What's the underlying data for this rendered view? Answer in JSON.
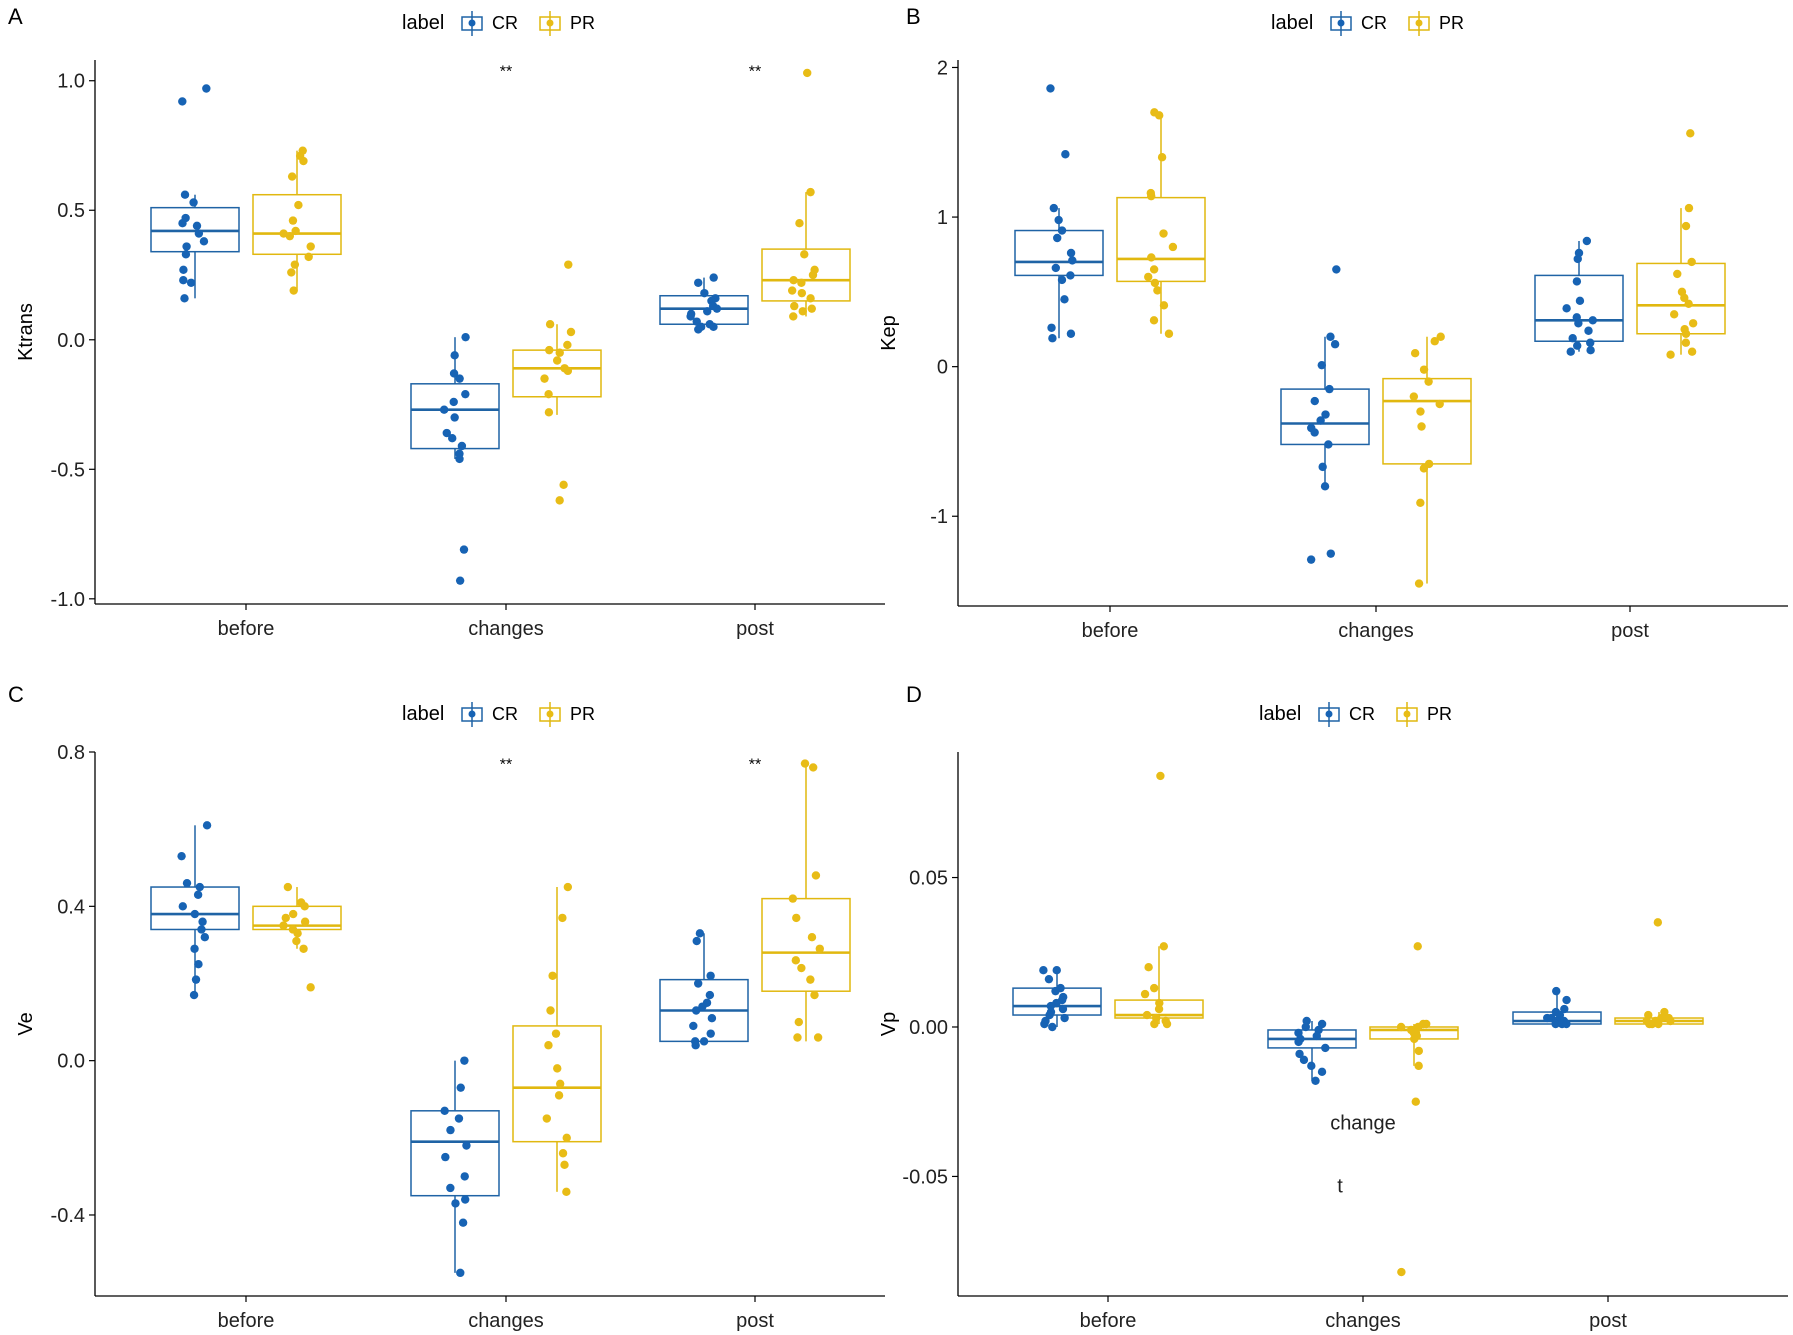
{
  "figure": {
    "legend_title": "label",
    "groups": [
      "CR",
      "PR"
    ],
    "colors": {
      "CR": "#1F63A5",
      "PR": "#E1B80F",
      "CR_point": "#1763B4",
      "PR_point": "#E8BC16",
      "axis": "#000000"
    }
  },
  "chart_data": [
    {
      "panel": "A",
      "type": "box",
      "title": "",
      "xlabel": "",
      "ylabel": "Ktrans",
      "ylim": [
        -1.02,
        1.08
      ],
      "y_ticks": [
        1.0,
        0.5,
        0.0,
        -0.5,
        -1.0
      ],
      "y_tick_labels": [
        "1.0",
        "0.5",
        "0.0",
        "-0.5",
        "-1.0"
      ],
      "categories": [
        "before",
        "changes",
        "post"
      ],
      "significance": [
        {
          "category": "changes",
          "label": "**",
          "y": 1.04
        },
        {
          "category": "post",
          "label": "**",
          "y": 1.04
        }
      ],
      "annotations": [],
      "series": [
        {
          "name": "CR",
          "boxes": [
            {
              "whisker_low": 0.16,
              "q1": 0.34,
              "median": 0.42,
              "q3": 0.51,
              "whisker_high": 0.56
            },
            {
              "whisker_low": -0.46,
              "q1": -0.42,
              "median": -0.27,
              "q3": -0.17,
              "whisker_high": 0.01
            },
            {
              "whisker_low": 0.04,
              "q1": 0.06,
              "median": 0.12,
              "q3": 0.17,
              "whisker_high": 0.24
            }
          ],
          "points": [
            [
              0.97,
              0.92,
              0.56,
              0.53,
              0.47,
              0.45,
              0.44,
              0.41,
              0.38,
              0.36,
              0.33,
              0.27,
              0.23,
              0.22,
              0.16
            ],
            [
              0.01,
              -0.06,
              -0.13,
              -0.15,
              -0.21,
              -0.24,
              -0.27,
              -0.3,
              -0.36,
              -0.38,
              -0.41,
              -0.44,
              -0.46,
              -0.81,
              -0.93
            ],
            [
              0.24,
              0.22,
              0.18,
              0.16,
              0.15,
              0.13,
              0.12,
              0.11,
              0.1,
              0.09,
              0.07,
              0.06,
              0.05,
              0.05,
              0.04
            ]
          ]
        },
        {
          "name": "PR",
          "boxes": [
            {
              "whisker_low": 0.19,
              "q1": 0.33,
              "median": 0.41,
              "q3": 0.56,
              "whisker_high": 0.73
            },
            {
              "whisker_low": -0.29,
              "q1": -0.22,
              "median": -0.11,
              "q3": -0.04,
              "whisker_high": 0.06
            },
            {
              "whisker_low": 0.09,
              "q1": 0.15,
              "median": 0.23,
              "q3": 0.35,
              "whisker_high": 0.57
            }
          ],
          "points": [
            [
              0.73,
              0.71,
              0.69,
              0.63,
              0.52,
              0.46,
              0.42,
              0.41,
              0.4,
              0.36,
              0.32,
              0.29,
              0.26,
              0.19
            ],
            [
              0.29,
              0.06,
              0.03,
              -0.02,
              -0.04,
              -0.05,
              -0.08,
              -0.11,
              -0.12,
              -0.15,
              -0.21,
              -0.28,
              -0.56,
              -0.62
            ],
            [
              1.03,
              0.57,
              0.45,
              0.33,
              0.27,
              0.25,
              0.23,
              0.22,
              0.19,
              0.18,
              0.16,
              0.13,
              0.12,
              0.11,
              0.09
            ]
          ]
        }
      ]
    },
    {
      "panel": "B",
      "type": "box",
      "title": "",
      "xlabel": "",
      "ylabel": "Kep",
      "ylim": [
        -1.6,
        2.05
      ],
      "y_ticks": [
        2,
        1,
        0,
        -1
      ],
      "y_tick_labels": [
        "2",
        "1",
        "0",
        "-1"
      ],
      "categories": [
        "before",
        "changes",
        "post"
      ],
      "significance": [],
      "annotations": [],
      "series": [
        {
          "name": "CR",
          "boxes": [
            {
              "whisker_low": 0.19,
              "q1": 0.61,
              "median": 0.7,
              "q3": 0.91,
              "whisker_high": 1.06
            },
            {
              "whisker_low": -0.8,
              "q1": -0.52,
              "median": -0.38,
              "q3": -0.15,
              "whisker_high": 0.2
            },
            {
              "whisker_low": 0.1,
              "q1": 0.17,
              "median": 0.31,
              "q3": 0.61,
              "whisker_high": 0.84
            }
          ],
          "points": [
            [
              1.86,
              1.42,
              1.06,
              0.98,
              0.91,
              0.86,
              0.76,
              0.71,
              0.66,
              0.61,
              0.58,
              0.45,
              0.26,
              0.22,
              0.19
            ],
            [
              0.65,
              0.2,
              0.15,
              0.01,
              -0.15,
              -0.23,
              -0.32,
              -0.36,
              -0.41,
              -0.44,
              -0.52,
              -0.67,
              -0.8,
              -1.25,
              -1.29
            ],
            [
              0.84,
              0.76,
              0.72,
              0.57,
              0.44,
              0.39,
              0.33,
              0.31,
              0.29,
              0.24,
              0.19,
              0.16,
              0.14,
              0.11,
              0.1
            ]
          ]
        },
        {
          "name": "PR",
          "boxes": [
            {
              "whisker_low": 0.22,
              "q1": 0.57,
              "median": 0.72,
              "q3": 1.13,
              "whisker_high": 1.7
            },
            {
              "whisker_low": -1.45,
              "q1": -0.65,
              "median": -0.23,
              "q3": -0.08,
              "whisker_high": 0.2
            },
            {
              "whisker_low": 0.08,
              "q1": 0.22,
              "median": 0.41,
              "q3": 0.69,
              "whisker_high": 1.06
            }
          ],
          "points": [
            [
              1.7,
              1.68,
              1.4,
              1.16,
              1.14,
              0.89,
              0.8,
              0.73,
              0.65,
              0.6,
              0.56,
              0.51,
              0.41,
              0.31,
              0.22
            ],
            [
              0.2,
              0.17,
              0.09,
              -0.02,
              -0.1,
              -0.2,
              -0.25,
              -0.3,
              -0.4,
              -0.65,
              -0.68,
              -0.91,
              -1.45
            ],
            [
              1.56,
              1.06,
              0.94,
              0.7,
              0.62,
              0.5,
              0.46,
              0.42,
              0.35,
              0.29,
              0.25,
              0.22,
              0.16,
              0.1,
              0.08
            ]
          ]
        }
      ]
    },
    {
      "panel": "C",
      "type": "box",
      "title": "",
      "xlabel": "",
      "ylabel": "Ve",
      "ylim": [
        -0.61,
        0.8
      ],
      "y_ticks": [
        0.8,
        0.4,
        0.0,
        -0.4
      ],
      "y_tick_labels": [
        "0.8",
        "0.4",
        "0.0",
        "-0.4"
      ],
      "categories": [
        "before",
        "changes",
        "post"
      ],
      "significance": [
        {
          "category": "changes",
          "label": "**",
          "y": 0.77
        },
        {
          "category": "post",
          "label": "**",
          "y": 0.77
        }
      ],
      "annotations": [],
      "series": [
        {
          "name": "CR",
          "boxes": [
            {
              "whisker_low": 0.17,
              "q1": 0.34,
              "median": 0.38,
              "q3": 0.45,
              "whisker_high": 0.61
            },
            {
              "whisker_low": -0.55,
              "q1": -0.35,
              "median": -0.21,
              "q3": -0.13,
              "whisker_high": 0.0
            },
            {
              "whisker_low": 0.04,
              "q1": 0.05,
              "median": 0.13,
              "q3": 0.21,
              "whisker_high": 0.33
            }
          ],
          "points": [
            [
              0.61,
              0.53,
              0.46,
              0.45,
              0.43,
              0.4,
              0.38,
              0.36,
              0.34,
              0.32,
              0.29,
              0.25,
              0.21,
              0.17
            ],
            [
              0.0,
              -0.07,
              -0.13,
              -0.15,
              -0.18,
              -0.22,
              -0.25,
              -0.3,
              -0.33,
              -0.36,
              -0.37,
              -0.42,
              -0.55
            ],
            [
              0.33,
              0.31,
              0.22,
              0.2,
              0.17,
              0.15,
              0.14,
              0.13,
              0.11,
              0.09,
              0.07,
              0.05,
              0.05,
              0.04
            ]
          ]
        },
        {
          "name": "PR",
          "boxes": [
            {
              "whisker_low": 0.29,
              "q1": 0.34,
              "median": 0.35,
              "q3": 0.4,
              "whisker_high": 0.45
            },
            {
              "whisker_low": -0.34,
              "q1": -0.21,
              "median": -0.07,
              "q3": 0.09,
              "whisker_high": 0.45
            },
            {
              "whisker_low": 0.05,
              "q1": 0.18,
              "median": 0.28,
              "q3": 0.42,
              "whisker_high": 0.77
            }
          ],
          "points": [
            [
              0.45,
              0.41,
              0.4,
              0.38,
              0.37,
              0.36,
              0.35,
              0.34,
              0.33,
              0.31,
              0.29,
              0.19
            ],
            [
              0.45,
              0.37,
              0.22,
              0.13,
              0.07,
              0.04,
              -0.02,
              -0.06,
              -0.09,
              -0.15,
              -0.2,
              -0.24,
              -0.27,
              -0.34
            ],
            [
              0.77,
              0.76,
              0.48,
              0.42,
              0.37,
              0.32,
              0.29,
              0.26,
              0.24,
              0.21,
              0.17,
              0.1,
              0.06,
              0.06
            ]
          ]
        }
      ]
    },
    {
      "panel": "D",
      "type": "box",
      "title": "",
      "xlabel": "",
      "ylabel": "Vp",
      "ylim": [
        -0.09,
        0.092
      ],
      "y_ticks": [
        0.05,
        0.0,
        -0.05
      ],
      "y_tick_labels": [
        "0.05",
        "0.00",
        "-0.05"
      ],
      "categories": [
        "before",
        "changes",
        "post"
      ],
      "significance": [],
      "annotations": [
        {
          "text": "change",
          "category": "changes",
          "y": -0.032
        },
        {
          "text": "t",
          "category": "changes",
          "y": -0.053,
          "offset": -0.3
        }
      ],
      "series": [
        {
          "name": "CR",
          "boxes": [
            {
              "whisker_low": 0.0,
              "q1": 0.004,
              "median": 0.007,
              "q3": 0.013,
              "whisker_high": 0.019
            },
            {
              "whisker_low": -0.018,
              "q1": -0.007,
              "median": -0.004,
              "q3": -0.001,
              "whisker_high": 0.002
            },
            {
              "whisker_low": 0.001,
              "q1": 0.001,
              "median": 0.002,
              "q3": 0.005,
              "whisker_high": 0.012
            }
          ],
          "points": [
            [
              0.019,
              0.019,
              0.016,
              0.013,
              0.012,
              0.01,
              0.009,
              0.008,
              0.007,
              0.006,
              0.005,
              0.004,
              0.003,
              0.002,
              0.001,
              0.0
            ],
            [
              0.002,
              0.001,
              0.0,
              -0.001,
              -0.002,
              -0.003,
              -0.004,
              -0.005,
              -0.007,
              -0.009,
              -0.011,
              -0.013,
              -0.015,
              -0.018
            ],
            [
              0.012,
              0.009,
              0.006,
              0.005,
              0.004,
              0.003,
              0.003,
              0.002,
              0.002,
              0.001,
              0.001,
              0.001
            ]
          ]
        },
        {
          "name": "PR",
          "boxes": [
            {
              "whisker_low": 0.001,
              "q1": 0.003,
              "median": 0.004,
              "q3": 0.009,
              "whisker_high": 0.027
            },
            {
              "whisker_low": -0.013,
              "q1": -0.004,
              "median": -0.001,
              "q3": 0.0,
              "whisker_high": 0.001
            },
            {
              "whisker_low": 0.001,
              "q1": 0.001,
              "median": 0.002,
              "q3": 0.003,
              "whisker_high": 0.005
            }
          ],
          "points": [
            [
              0.084,
              0.027,
              0.02,
              0.013,
              0.011,
              0.008,
              0.006,
              0.004,
              0.003,
              0.002,
              0.001,
              0.001
            ],
            [
              0.027,
              0.001,
              0.001,
              0.0,
              0.0,
              -0.001,
              -0.002,
              -0.002,
              -0.003,
              -0.004,
              -0.008,
              -0.013,
              -0.025,
              -0.082
            ],
            [
              0.035,
              0.005,
              0.004,
              0.003,
              0.003,
              0.002,
              0.002,
              0.002,
              0.001,
              0.001,
              0.001
            ]
          ]
        }
      ]
    }
  ]
}
